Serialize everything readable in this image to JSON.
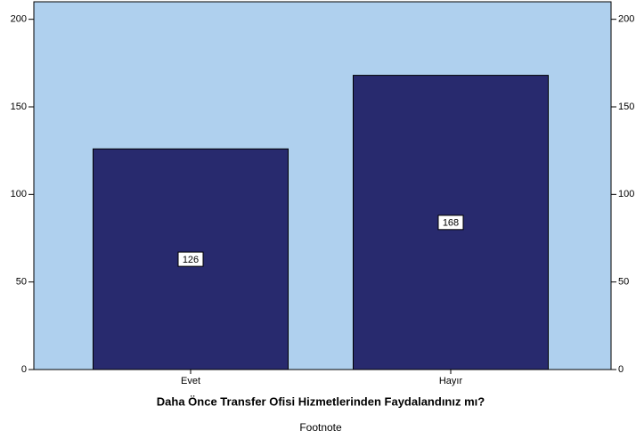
{
  "chart_data": {
    "type": "bar",
    "x_label": "Daha Önce Transfer Ofisi Hizmetlerinden Faydalandınız mı?",
    "footnote": "Footnote",
    "categories": [
      "Evet",
      "Hayır"
    ],
    "values": [
      126,
      168
    ],
    "color": "#282a6e",
    "background": "#afd0ee",
    "ylim": [
      0,
      210
    ],
    "yticks": [
      0,
      50,
      100,
      150,
      200
    ],
    "y2lim": [
      0,
      210
    ],
    "y2ticks": [
      0,
      50,
      100,
      150,
      200
    ]
  }
}
